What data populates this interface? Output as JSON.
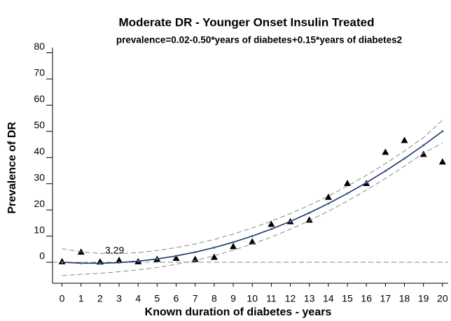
{
  "chart_data": {
    "type": "line",
    "title": "Moderate DR - Younger Onset Insulin Treated",
    "subtitle": "prevalence=0.02-0.50*years of diabetes+0.15*years of diabetes2",
    "x_label": "Known duration of diabetes - years",
    "y_label": "Prevalence of DR",
    "annotation": "3.29",
    "x": [
      0,
      1,
      2,
      3,
      4,
      5,
      6,
      7,
      8,
      9,
      10,
      11,
      12,
      13,
      14,
      15,
      16,
      17,
      18,
      19,
      20
    ],
    "series": [
      {
        "name": "observed",
        "color": "#000000",
        "marker": "triangle",
        "values": [
          0.3,
          4.0,
          0.2,
          0.8,
          0.3,
          1.2,
          1.6,
          1.2,
          2.0,
          6.1,
          7.9,
          14.6,
          15.6,
          16.2,
          24.9,
          30.2,
          30.2,
          42.1,
          46.6,
          41.3,
          38.4
        ]
      },
      {
        "name": "fitted",
        "color": "#1f2f6b",
        "marker": "dot",
        "values": [
          0.02,
          -0.33,
          -0.38,
          -0.13,
          0.42,
          1.27,
          2.42,
          3.87,
          5.62,
          7.67,
          10.02,
          12.67,
          15.62,
          18.87,
          22.42,
          26.27,
          30.42,
          34.87,
          39.62,
          44.67,
          50.02
        ]
      },
      {
        "name": "upper",
        "color": "#888888",
        "marker": "dash",
        "values": [
          5.2,
          4.0,
          3.4,
          3.3,
          3.7,
          4.5,
          5.6,
          7.0,
          8.7,
          10.8,
          13.1,
          15.7,
          18.6,
          21.8,
          25.3,
          29.1,
          33.2,
          37.7,
          42.5,
          47.6,
          54.3
        ]
      },
      {
        "name": "lower",
        "color": "#888888",
        "marker": "dash",
        "values": [
          -5.1,
          -4.6,
          -4.2,
          -3.6,
          -2.9,
          -2.0,
          -0.8,
          0.7,
          2.5,
          4.6,
          7.0,
          9.6,
          12.6,
          15.9,
          19.5,
          23.4,
          27.6,
          32.0,
          36.7,
          41.7,
          45.5
        ]
      }
    ],
    "xlim": [
      -0.5,
      20.3
    ],
    "ylim": [
      -8,
      82
    ],
    "xticks": [
      0,
      1,
      2,
      3,
      4,
      5,
      6,
      7,
      8,
      9,
      10,
      11,
      12,
      13,
      14,
      15,
      16,
      17,
      18,
      19,
      20
    ],
    "yticks": [
      0,
      10,
      20,
      30,
      40,
      50,
      60,
      70,
      80
    ],
    "grid": false,
    "legend": false
  }
}
